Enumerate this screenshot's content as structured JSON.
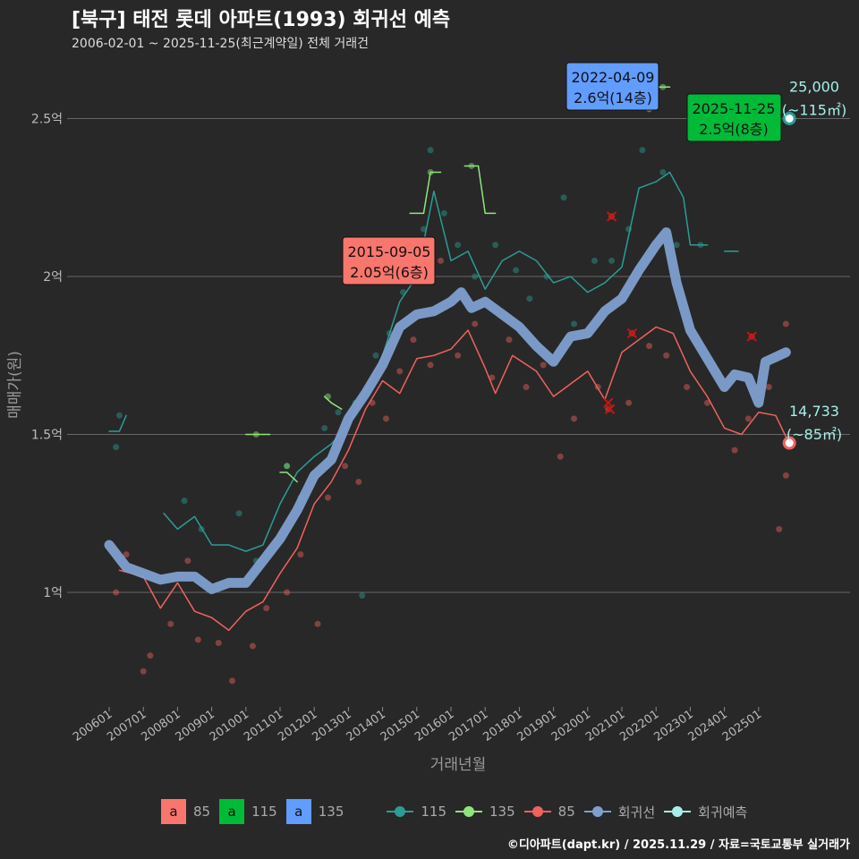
{
  "title": "[북구] 태전 롯데 아파트(1993) 회귀선 예측",
  "subtitle": "2006-02-01 ~ 2025-11-25(최근계약일) 전체 거래건",
  "caption": "©디아파트(dapt.kr) / 2025.11.29 / 자료=국토교통부 실거래가",
  "legend": {
    "label_boxes": [
      {
        "text": "a",
        "label": "85",
        "color": "#f8766d"
      },
      {
        "text": "a",
        "label": "115",
        "color": "#00ba38"
      },
      {
        "text": "a",
        "label": "135",
        "color": "#619cff"
      }
    ],
    "lines": [
      {
        "label": "115",
        "color": "#2a9d95"
      },
      {
        "label": "135",
        "color": "#8ee67a"
      },
      {
        "label": "85",
        "color": "#f0625e"
      },
      {
        "label": "회귀선",
        "color": "#7f9fcf"
      },
      {
        "label": "회귀예측",
        "color": "#a6efea"
      }
    ]
  },
  "chart_data": {
    "type": "line",
    "xlabel": "거래년월",
    "ylabel": "매매가(원)",
    "xlim": [
      2005.5,
      2026.6
    ],
    "ylim": [
      0.65,
      2.78
    ],
    "x_ticks": [
      {
        "v": 2006,
        "label": "200601"
      },
      {
        "v": 2007,
        "label": "200701"
      },
      {
        "v": 2008,
        "label": "200801"
      },
      {
        "v": 2009,
        "label": "200901"
      },
      {
        "v": 2010,
        "label": "201001"
      },
      {
        "v": 2011,
        "label": "201101"
      },
      {
        "v": 2012,
        "label": "201201"
      },
      {
        "v": 2013,
        "label": "201301"
      },
      {
        "v": 2014,
        "label": "201401"
      },
      {
        "v": 2015,
        "label": "201501"
      },
      {
        "v": 2016,
        "label": "201601"
      },
      {
        "v": 2017,
        "label": "201701"
      },
      {
        "v": 2018,
        "label": "201801"
      },
      {
        "v": 2019,
        "label": "201901"
      },
      {
        "v": 2020,
        "label": "202001"
      },
      {
        "v": 2021,
        "label": "202101"
      },
      {
        "v": 2022,
        "label": "202201"
      },
      {
        "v": 2023,
        "label": "202301"
      },
      {
        "v": 2024,
        "label": "202401"
      },
      {
        "v": 2025,
        "label": "202501"
      }
    ],
    "y_ticks": [
      {
        "v": 1,
        "label": "1억"
      },
      {
        "v": 1.5,
        "label": "1.5억"
      },
      {
        "v": 2,
        "label": "2억"
      },
      {
        "v": 2.5,
        "label": "2.5억"
      }
    ],
    "series": [
      {
        "name": "115",
        "color": "#2a9d95",
        "segments": [
          [
            [
              2006.0,
              1.51
            ],
            [
              2006.3,
              1.51
            ],
            [
              2006.5,
              1.56
            ]
          ],
          [
            [
              2007.6,
              1.25
            ],
            [
              2008,
              1.2
            ],
            [
              2008.5,
              1.24
            ],
            [
              2009,
              1.15
            ],
            [
              2009.5,
              1.15
            ],
            [
              2010,
              1.13
            ],
            [
              2010.5,
              1.15
            ],
            [
              2011,
              1.28
            ],
            [
              2011.5,
              1.38
            ],
            [
              2012,
              1.43
            ],
            [
              2012.5,
              1.47
            ],
            [
              2013,
              1.53
            ],
            [
              2013.5,
              1.64
            ],
            [
              2014,
              1.75
            ],
            [
              2014.5,
              1.92
            ],
            [
              2015,
              2.0
            ],
            [
              2015.5,
              2.27
            ],
            [
              2016,
              2.05
            ],
            [
              2016.5,
              2.08
            ],
            [
              2017,
              1.96
            ],
            [
              2017.5,
              2.05
            ],
            [
              2018,
              2.08
            ],
            [
              2018.5,
              2.05
            ],
            [
              2019,
              1.98
            ],
            [
              2019.5,
              2.0
            ],
            [
              2020,
              1.95
            ],
            [
              2020.5,
              1.98
            ],
            [
              2021,
              2.03
            ],
            [
              2021.5,
              2.28
            ],
            [
              2022,
              2.3
            ],
            [
              2022.4,
              2.33
            ],
            [
              2022.8,
              2.25
            ],
            [
              2023,
              2.1
            ],
            [
              2023.5,
              2.1
            ]
          ],
          [
            [
              2024,
              2.08
            ],
            [
              2024.4,
              2.08
            ]
          ]
        ],
        "points": [
          [
            2006.2,
            1.46
          ],
          [
            2006.3,
            1.56
          ],
          [
            2008.2,
            1.29
          ],
          [
            2008.7,
            1.2
          ],
          [
            2009.8,
            1.25
          ],
          [
            2010.3,
            1.1
          ],
          [
            2011.2,
            1.4
          ],
          [
            2011.6,
            1.3
          ],
          [
            2012.3,
            1.52
          ],
          [
            2012.7,
            1.57
          ],
          [
            2013.2,
            1.6
          ],
          [
            2013.4,
            0.99
          ],
          [
            2013.8,
            1.75
          ],
          [
            2014.2,
            1.82
          ],
          [
            2014.6,
            1.95
          ],
          [
            2015.2,
            2.15
          ],
          [
            2015.4,
            2.4
          ],
          [
            2015.8,
            2.2
          ],
          [
            2016.2,
            2.1
          ],
          [
            2016.7,
            2.0
          ],
          [
            2017.3,
            2.1
          ],
          [
            2017.9,
            2.02
          ],
          [
            2018.3,
            1.93
          ],
          [
            2018.8,
            2.0
          ],
          [
            2019.3,
            2.25
          ],
          [
            2019.6,
            1.85
          ],
          [
            2020.2,
            2.05
          ],
          [
            2020.7,
            2.05
          ],
          [
            2021.2,
            2.15
          ],
          [
            2021.6,
            2.4
          ],
          [
            2022.2,
            2.33
          ],
          [
            2022.6,
            2.1
          ],
          [
            2023.3,
            2.1
          ]
        ]
      },
      {
        "name": "135",
        "color": "#8ee67a",
        "segments": [
          [
            [
              2010.0,
              1.5
            ],
            [
              2010.7,
              1.5
            ]
          ],
          [
            [
              2011.0,
              1.38
            ],
            [
              2011.2,
              1.38
            ],
            [
              2011.5,
              1.35
            ]
          ],
          [
            [
              2012.3,
              1.62
            ],
            [
              2012.5,
              1.6
            ],
            [
              2012.8,
              1.58
            ]
          ],
          [
            [
              2014.8,
              2.2
            ],
            [
              2015.2,
              2.2
            ],
            [
              2015.4,
              2.33
            ],
            [
              2015.7,
              2.33
            ]
          ],
          [
            [
              2016.4,
              2.35
            ],
            [
              2016.8,
              2.35
            ],
            [
              2017.0,
              2.2
            ],
            [
              2017.3,
              2.2
            ]
          ],
          [
            [
              2022.1,
              2.6
            ],
            [
              2022.4,
              2.6
            ]
          ]
        ],
        "points": [
          [
            2010.3,
            1.5
          ],
          [
            2011.2,
            1.4
          ],
          [
            2012.4,
            1.62
          ],
          [
            2015.4,
            2.33
          ],
          [
            2016.6,
            2.35
          ],
          [
            2022.2,
            2.6
          ],
          [
            2021.8,
            2.53
          ]
        ]
      },
      {
        "name": "85",
        "color": "#f0625e",
        "segments": [
          [
            [
              2006.3,
              1.07
            ],
            [
              2007,
              1.05
            ],
            [
              2007.5,
              0.95
            ],
            [
              2008,
              1.03
            ],
            [
              2008.5,
              0.94
            ],
            [
              2009,
              0.92
            ],
            [
              2009.5,
              0.88
            ],
            [
              2010,
              0.94
            ],
            [
              2010.5,
              0.97
            ],
            [
              2011,
              1.06
            ],
            [
              2011.5,
              1.14
            ],
            [
              2012,
              1.28
            ],
            [
              2012.5,
              1.35
            ],
            [
              2013,
              1.45
            ],
            [
              2013.5,
              1.58
            ],
            [
              2014,
              1.67
            ],
            [
              2014.5,
              1.63
            ],
            [
              2015,
              1.74
            ],
            [
              2015.5,
              1.75
            ],
            [
              2016,
              1.77
            ],
            [
              2016.5,
              1.83
            ],
            [
              2017,
              1.71
            ],
            [
              2017.3,
              1.63
            ],
            [
              2017.8,
              1.75
            ],
            [
              2018.5,
              1.7
            ],
            [
              2019,
              1.62
            ],
            [
              2019.5,
              1.66
            ],
            [
              2020,
              1.7
            ],
            [
              2020.5,
              1.61
            ],
            [
              2021,
              1.76
            ],
            [
              2021.5,
              1.8
            ],
            [
              2022,
              1.84
            ],
            [
              2022.5,
              1.82
            ],
            [
              2023,
              1.7
            ],
            [
              2023.5,
              1.62
            ],
            [
              2024,
              1.52
            ],
            [
              2024.5,
              1.5
            ],
            [
              2025,
              1.57
            ],
            [
              2025.5,
              1.56
            ],
            [
              2025.9,
              1.47
            ]
          ]
        ],
        "points": [
          [
            2006.2,
            1.0
          ],
          [
            2006.5,
            1.12
          ],
          [
            2007,
            0.75
          ],
          [
            2007.2,
            0.8
          ],
          [
            2007.8,
            0.9
          ],
          [
            2008.3,
            1.1
          ],
          [
            2008.6,
            0.85
          ],
          [
            2009.2,
            0.84
          ],
          [
            2009.6,
            0.72
          ],
          [
            2010.2,
            0.83
          ],
          [
            2010.6,
            0.95
          ],
          [
            2011.2,
            1.0
          ],
          [
            2011.6,
            1.12
          ],
          [
            2012.1,
            0.9
          ],
          [
            2012.4,
            1.3
          ],
          [
            2012.9,
            1.4
          ],
          [
            2013.3,
            1.35
          ],
          [
            2013.7,
            1.6
          ],
          [
            2014.1,
            1.55
          ],
          [
            2014.5,
            1.7
          ],
          [
            2014.9,
            1.8
          ],
          [
            2015.4,
            1.72
          ],
          [
            2015.7,
            2.05
          ],
          [
            2016.2,
            1.75
          ],
          [
            2016.7,
            1.85
          ],
          [
            2017.2,
            1.68
          ],
          [
            2017.7,
            1.8
          ],
          [
            2018.2,
            1.65
          ],
          [
            2018.7,
            1.72
          ],
          [
            2019.2,
            1.43
          ],
          [
            2019.6,
            1.55
          ],
          [
            2020.3,
            1.65
          ],
          [
            2020.6,
            1.58
          ],
          [
            2020.7,
            2.19
          ],
          [
            2021.2,
            1.6
          ],
          [
            2021.3,
            1.82
          ],
          [
            2021.8,
            1.78
          ],
          [
            2022.3,
            1.75
          ],
          [
            2022.9,
            1.65
          ],
          [
            2023.5,
            1.6
          ],
          [
            2024.3,
            1.45
          ],
          [
            2024.7,
            1.55
          ],
          [
            2024.8,
            1.81
          ],
          [
            2025.3,
            1.65
          ],
          [
            2025.6,
            1.2
          ],
          [
            2025.8,
            1.37
          ],
          [
            2025.8,
            1.85
          ]
        ]
      },
      {
        "name": "회귀선",
        "color": "#7f9fcf",
        "thick": true,
        "segments": [
          [
            [
              2006.0,
              1.15
            ],
            [
              2006.5,
              1.08
            ],
            [
              2007,
              1.06
            ],
            [
              2007.5,
              1.04
            ],
            [
              2008,
              1.05
            ],
            [
              2008.5,
              1.05
            ],
            [
              2009,
              1.01
            ],
            [
              2009.5,
              1.03
            ],
            [
              2010,
              1.03
            ],
            [
              2010.5,
              1.1
            ],
            [
              2011,
              1.17
            ],
            [
              2011.5,
              1.26
            ],
            [
              2012,
              1.37
            ],
            [
              2012.5,
              1.42
            ],
            [
              2013,
              1.55
            ],
            [
              2013.5,
              1.63
            ],
            [
              2014,
              1.72
            ],
            [
              2014.5,
              1.84
            ],
            [
              2015,
              1.88
            ],
            [
              2015.5,
              1.89
            ],
            [
              2016,
              1.92
            ],
            [
              2016.3,
              1.95
            ],
            [
              2016.6,
              1.9
            ],
            [
              2017,
              1.92
            ],
            [
              2017.5,
              1.88
            ],
            [
              2018,
              1.84
            ],
            [
              2018.5,
              1.78
            ],
            [
              2019,
              1.73
            ],
            [
              2019.5,
              1.81
            ],
            [
              2020,
              1.82
            ],
            [
              2020.5,
              1.89
            ],
            [
              2021,
              1.93
            ],
            [
              2021.5,
              2.02
            ],
            [
              2022,
              2.1
            ],
            [
              2022.3,
              2.14
            ],
            [
              2022.6,
              1.98
            ],
            [
              2023,
              1.83
            ],
            [
              2023.5,
              1.74
            ],
            [
              2024,
              1.65
            ],
            [
              2024.3,
              1.69
            ],
            [
              2024.7,
              1.68
            ],
            [
              2025,
              1.6
            ],
            [
              2025.2,
              1.73
            ],
            [
              2025.8,
              1.76
            ]
          ]
        ],
        "points": []
      }
    ],
    "annotations": [
      {
        "date": "2015-09-05",
        "value": "2.05억(6층)",
        "color": "#f8766d",
        "x": 2015.68,
        "y": 2.05
      },
      {
        "date": "2022-04-09",
        "value": "2.6억(14층)",
        "color": "#619cff",
        "x": 2022.27,
        "y": 2.6
      },
      {
        "date": "2025-11-25",
        "value": "2.5억(8층)",
        "color": "#00ba38",
        "x": 2025.9,
        "y": 2.5
      }
    ],
    "predictions": [
      {
        "amount": "25,000",
        "area": "(~115㎡)",
        "x": 2025.9,
        "y": 2.5,
        "color": "#2a9d95"
      },
      {
        "amount": "14,733",
        "area": "(~85㎡)",
        "x": 2025.9,
        "y": 1.473,
        "color": "#f0625e"
      }
    ]
  }
}
